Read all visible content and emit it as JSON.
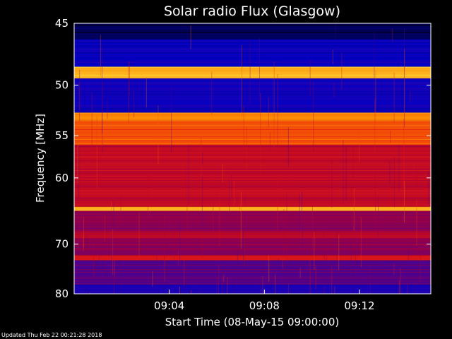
{
  "chart_data": {
    "type": "heatmap",
    "title": "Solar radio Flux (Glasgow)",
    "xlabel": "Start Time (08-May-15 09:00:00)",
    "ylabel": "Frequency [MHz]",
    "x_ticks": [
      "09:04",
      "09:08",
      "09:12"
    ],
    "x_tick_minutes": [
      4,
      8,
      12
    ],
    "x_range_minutes": [
      0,
      15
    ],
    "y_ticks": [
      45,
      50,
      55,
      60,
      70,
      80
    ],
    "y_scale": "reciprocal",
    "ylim": [
      45,
      80
    ],
    "colormap": [
      "#000010",
      "#0000c8",
      "#4a0090",
      "#b00030",
      "#e82010",
      "#ff8800",
      "#ffe040"
    ],
    "bands": [
      {
        "from_mhz": 45.0,
        "to_mhz": 46.2,
        "level": 0.05
      },
      {
        "from_mhz": 46.2,
        "to_mhz": 48.4,
        "level": 0.18
      },
      {
        "from_mhz": 48.4,
        "to_mhz": 49.4,
        "level": 0.92
      },
      {
        "from_mhz": 49.4,
        "to_mhz": 52.6,
        "level": 0.2
      },
      {
        "from_mhz": 52.6,
        "to_mhz": 53.4,
        "level": 0.85
      },
      {
        "from_mhz": 53.4,
        "to_mhz": 56.0,
        "level": 0.74
      },
      {
        "from_mhz": 56.0,
        "to_mhz": 64.0,
        "level": 0.55
      },
      {
        "from_mhz": 64.0,
        "to_mhz": 64.6,
        "level": 0.9
      },
      {
        "from_mhz": 64.6,
        "to_mhz": 68.0,
        "level": 0.45
      },
      {
        "from_mhz": 68.0,
        "to_mhz": 69.0,
        "level": 0.52
      },
      {
        "from_mhz": 69.0,
        "to_mhz": 72.0,
        "level": 0.45
      },
      {
        "from_mhz": 72.0,
        "to_mhz": 73.0,
        "level": 0.6
      },
      {
        "from_mhz": 73.0,
        "to_mhz": 78.0,
        "level": 0.35
      },
      {
        "from_mhz": 78.0,
        "to_mhz": 80.0,
        "level": 0.22
      }
    ],
    "grid": false
  },
  "footer": {
    "updated": "Updated Thu Feb 22 00:21:28 2018"
  }
}
